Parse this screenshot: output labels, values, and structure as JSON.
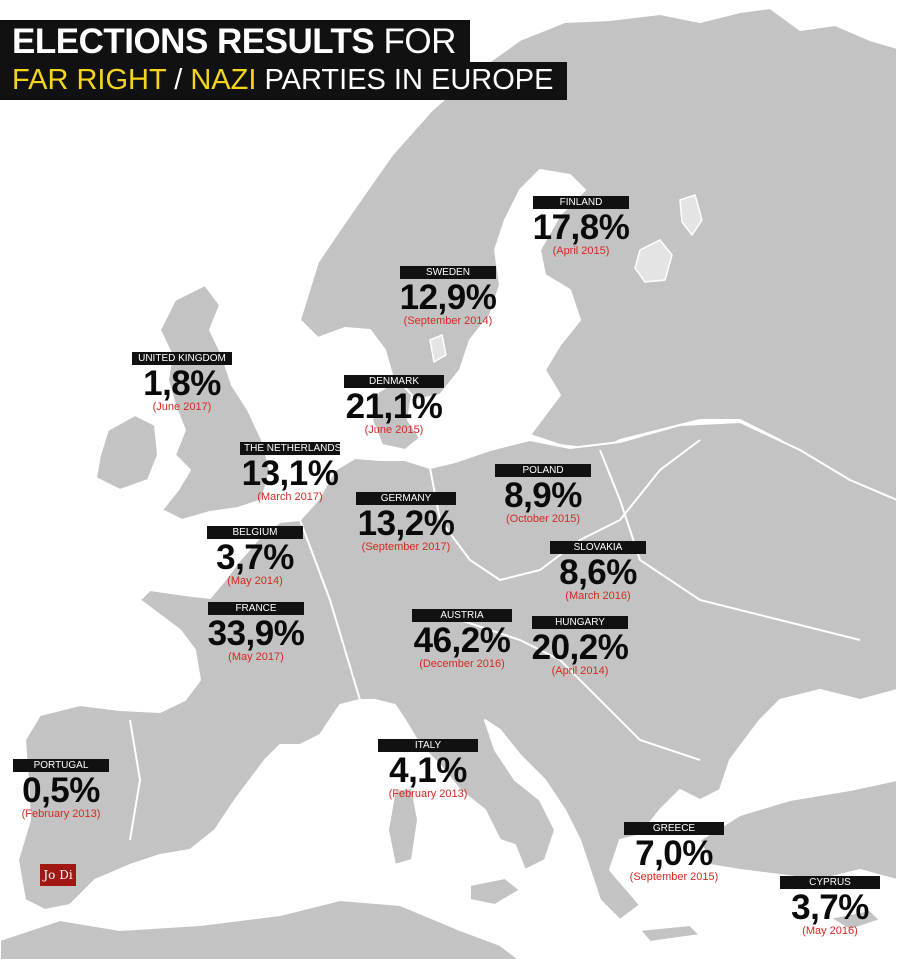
{
  "title": {
    "line1_bold": "ELECTIONS RESULTS",
    "line1_light": "FOR",
    "line2_far_right": "FAR RIGHT",
    "line2_slash": "/",
    "line2_nazi": "NAZI",
    "line2_rest": "PARTIES IN EUROPE"
  },
  "colors": {
    "land": "#c3c3c3",
    "label_bg": "#111111",
    "accent_yellow": "#f5d51c",
    "date_red": "#d32a22",
    "logo_red": "#a01713"
  },
  "countries": [
    {
      "name": "FINLAND",
      "percent": "17,8%",
      "date": "(April 2015)"
    },
    {
      "name": "SWEDEN",
      "percent": "12,9%",
      "date": "(September 2014)"
    },
    {
      "name": "UNITED KINGDOM",
      "percent": "1,8%",
      "date": "(June 2017)"
    },
    {
      "name": "DENMARK",
      "percent": "21,1%",
      "date": "(June 2015)"
    },
    {
      "name": "THE NETHERLANDS",
      "percent": "13,1%",
      "date": "(March 2017)"
    },
    {
      "name": "GERMANY",
      "percent": "13,2%",
      "date": "(September 2017)"
    },
    {
      "name": "POLAND",
      "percent": "8,9%",
      "date": "(October 2015)"
    },
    {
      "name": "BELGIUM",
      "percent": "3,7%",
      "date": "(May 2014)"
    },
    {
      "name": "SLOVAKIA",
      "percent": "8,6%",
      "date": "(March 2016)"
    },
    {
      "name": "FRANCE",
      "percent": "33,9%",
      "date": "(May 2017)"
    },
    {
      "name": "AUSTRIA",
      "percent": "46,2%",
      "date": "(December 2016)"
    },
    {
      "name": "HUNGARY",
      "percent": "20,2%",
      "date": "(April 2014)"
    },
    {
      "name": "ITALY",
      "percent": "4,1%",
      "date": "(February 2013)"
    },
    {
      "name": "PORTUGAL",
      "percent": "0,5%",
      "date": "(February 2013)"
    },
    {
      "name": "GREECE",
      "percent": "7,0%",
      "date": "(September 2015)"
    },
    {
      "name": "CYPRUS",
      "percent": "3,7%",
      "date": "(May 2016)"
    }
  ],
  "logo_text": "Jo Di"
}
